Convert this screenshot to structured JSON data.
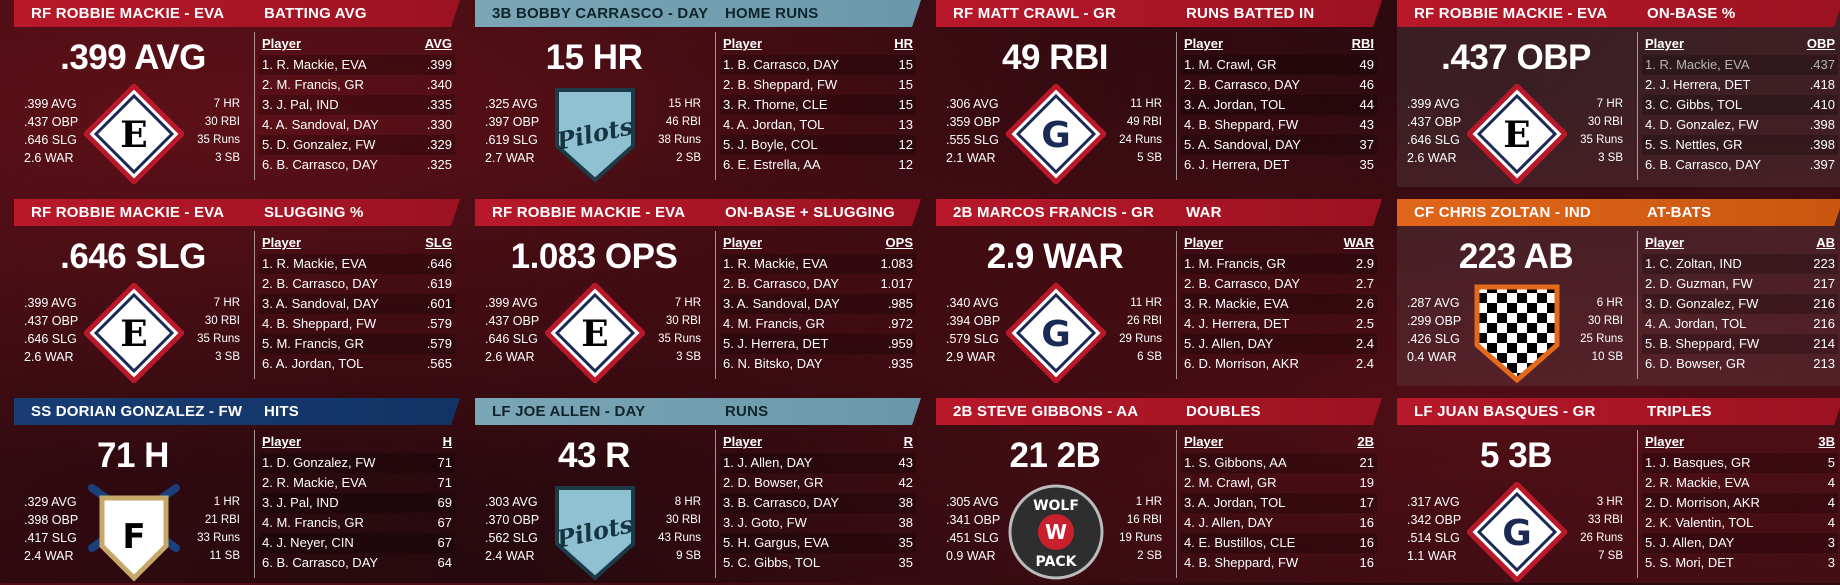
{
  "cards": [
    {
      "player": "RF ROBBIE MACKIE - EVA",
      "category": "BATTING AVG",
      "headline": ".399 AVG",
      "stats": [
        ".399 AVG",
        ".437 OBP",
        ".646 SLG",
        "2.6 WAR"
      ],
      "rstats": [
        "7 HR",
        "30 RBI",
        "35 Runs",
        "3 SB"
      ],
      "logo_letter": "E",
      "col_player": "Player",
      "col_stat": "AVG",
      "rows": [
        {
          "name": "1. R. Mackie, EVA",
          "val": ".399"
        },
        {
          "name": "2. M. Francis, GR",
          "val": ".340"
        },
        {
          "name": "3. J. Pal, IND",
          "val": ".335"
        },
        {
          "name": "4. A. Sandoval, DAY",
          "val": ".330"
        },
        {
          "name": "5. D. Gonzalez, FW",
          "val": ".329"
        },
        {
          "name": "6. B. Carrasco, DAY",
          "val": ".325"
        }
      ]
    },
    {
      "player": "3B BOBBY CARRASCO - DAY",
      "category": "HOME RUNS",
      "headline": "15 HR",
      "stats": [
        ".325 AVG",
        ".397 OBP",
        ".619 SLG",
        "2.7 WAR"
      ],
      "rstats": [
        "15 HR",
        "46 RBI",
        "38 Runs",
        "2 SB"
      ],
      "logo_text": "Pilots",
      "col_player": "Player",
      "col_stat": "HR",
      "rows": [
        {
          "name": "1. B. Carrasco, DAY",
          "val": "15"
        },
        {
          "name": "2. B. Sheppard, FW",
          "val": "15"
        },
        {
          "name": "3. R. Thorne, CLE",
          "val": "15"
        },
        {
          "name": "4. A. Jordan, TOL",
          "val": "13"
        },
        {
          "name": "5. J. Boyle, COL",
          "val": "12"
        },
        {
          "name": "6. E. Estrella, AA",
          "val": "12"
        }
      ]
    },
    {
      "player": "RF MATT CRAWL - GR",
      "category": "RUNS BATTED IN",
      "headline": "49 RBI",
      "stats": [
        ".306 AVG",
        ".359 OBP",
        ".555 SLG",
        "2.1 WAR"
      ],
      "rstats": [
        "11 HR",
        "49 RBI",
        "24 Runs",
        "5 SB"
      ],
      "logo_letter": "G",
      "col_player": "Player",
      "col_stat": "RBI",
      "rows": [
        {
          "name": "1. M. Crawl, GR",
          "val": "49"
        },
        {
          "name": "2. B. Carrasco, DAY",
          "val": "46"
        },
        {
          "name": "3. A. Jordan, TOL",
          "val": "44"
        },
        {
          "name": "4. B. Sheppard, FW",
          "val": "43"
        },
        {
          "name": "5. A. Sandoval, DAY",
          "val": "37"
        },
        {
          "name": "6. J. Herrera, DET",
          "val": "35"
        }
      ]
    },
    {
      "player": "RF ROBBIE MACKIE - EVA",
      "category": "ON-BASE %",
      "headline": ".437 OBP",
      "stats": [
        ".399 AVG",
        ".437 OBP",
        ".646 SLG",
        "2.6 WAR"
      ],
      "rstats": [
        "7 HR",
        "30 RBI",
        "35 Runs",
        "3 SB"
      ],
      "logo_letter": "E",
      "col_player": "Player",
      "col_stat": "OBP",
      "rows": [
        {
          "name": "1. R. Mackie, EVA",
          "val": ".437"
        },
        {
          "name": "2. J. Herrera, DET",
          "val": ".418"
        },
        {
          "name": "3. C. Gibbs, TOL",
          "val": ".410"
        },
        {
          "name": "4. D. Gonzalez, FW",
          "val": ".398"
        },
        {
          "name": "5. S. Nettles, GR",
          "val": ".398"
        },
        {
          "name": "6. B. Carrasco, DAY",
          "val": ".397"
        }
      ]
    },
    {
      "player": "RF ROBBIE MACKIE - EVA",
      "category": "SLUGGING %",
      "headline": ".646 SLG",
      "stats": [
        ".399 AVG",
        ".437 OBP",
        ".646 SLG",
        "2.6 WAR"
      ],
      "rstats": [
        "7 HR",
        "30 RBI",
        "35 Runs",
        "3 SB"
      ],
      "logo_letter": "E",
      "col_player": "Player",
      "col_stat": "SLG",
      "rows": [
        {
          "name": "1. R. Mackie, EVA",
          "val": ".646"
        },
        {
          "name": "2. B. Carrasco, DAY",
          "val": ".619"
        },
        {
          "name": "3. A. Sandoval, DAY",
          "val": ".601"
        },
        {
          "name": "4. B. Sheppard, FW",
          "val": ".579"
        },
        {
          "name": "5. M. Francis, GR",
          "val": ".579"
        },
        {
          "name": "6. A. Jordan, TOL",
          "val": ".565"
        }
      ]
    },
    {
      "player": "RF ROBBIE MACKIE - EVA",
      "category": "ON-BASE + SLUGGING",
      "headline": "1.083 OPS",
      "stats": [
        ".399 AVG",
        ".437 OBP",
        ".646 SLG",
        "2.6 WAR"
      ],
      "rstats": [
        "7 HR",
        "30 RBI",
        "35 Runs",
        "3 SB"
      ],
      "logo_letter": "E",
      "col_player": "Player",
      "col_stat": "OPS",
      "rows": [
        {
          "name": "1. R. Mackie, EVA",
          "val": "1.083"
        },
        {
          "name": "2. B. Carrasco, DAY",
          "val": "1.017"
        },
        {
          "name": "3. A. Sandoval, DAY",
          "val": ".985"
        },
        {
          "name": "4. M. Francis, GR",
          "val": ".972"
        },
        {
          "name": "5. J. Herrera, DET",
          "val": ".959"
        },
        {
          "name": "6. N. Bitsko, DAY",
          "val": ".935"
        }
      ]
    },
    {
      "player": "2B MARCOS FRANCIS - GR",
      "category": "WAR",
      "headline": "2.9 WAR",
      "stats": [
        ".340 AVG",
        ".394 OBP",
        ".579 SLG",
        "2.9 WAR"
      ],
      "rstats": [
        "11 HR",
        "26 RBI",
        "29 Runs",
        "6 SB"
      ],
      "logo_letter": "G",
      "col_player": "Player",
      "col_stat": "WAR",
      "rows": [
        {
          "name": "1. M. Francis, GR",
          "val": "2.9"
        },
        {
          "name": "2. B. Carrasco, DAY",
          "val": "2.7"
        },
        {
          "name": "3. R. Mackie, EVA",
          "val": "2.6"
        },
        {
          "name": "4. J. Herrera, DET",
          "val": "2.5"
        },
        {
          "name": "5. J. Allen, DAY",
          "val": "2.4"
        },
        {
          "name": "6. D. Morrison, AKR",
          "val": "2.4"
        }
      ]
    },
    {
      "player": "CF CHRIS ZOLTAN - IND",
      "category": "AT-BATS",
      "headline": "223 AB",
      "stats": [
        ".287 AVG",
        ".299 OBP",
        ".426 SLG",
        "0.4 WAR"
      ],
      "rstats": [
        "6 HR",
        "30 RBI",
        "25 Runs",
        "10 SB"
      ],
      "logo_checker": true,
      "col_player": "Player",
      "col_stat": "AB",
      "rows": [
        {
          "name": "1. C. Zoltan, IND",
          "val": "223"
        },
        {
          "name": "2. D. Guzman, FW",
          "val": "217"
        },
        {
          "name": "3. D. Gonzalez, FW",
          "val": "216"
        },
        {
          "name": "4. A. Jordan, TOL",
          "val": "216"
        },
        {
          "name": "5. B. Sheppard, FW",
          "val": "214"
        },
        {
          "name": "6. D. Bowser, GR",
          "val": "213"
        }
      ]
    },
    {
      "player": "SS DORIAN GONZALEZ - FW",
      "category": "HITS",
      "headline": "71 H",
      "stats": [
        ".329 AVG",
        ".398 OBP",
        ".417 SLG",
        "2.4 WAR"
      ],
      "rstats": [
        "1 HR",
        "21 RBI",
        "33 Runs",
        "11 SB"
      ],
      "logo_letter": "F",
      "col_player": "Player",
      "col_stat": "H",
      "rows": [
        {
          "name": "1. D. Gonzalez, FW",
          "val": "71"
        },
        {
          "name": "2. R. Mackie, EVA",
          "val": "71"
        },
        {
          "name": "3. J. Pal, IND",
          "val": "69"
        },
        {
          "name": "4. M. Francis, GR",
          "val": "67"
        },
        {
          "name": "4. J. Neyer, CIN",
          "val": "67"
        },
        {
          "name": "6. B. Carrasco, DAY",
          "val": "64"
        }
      ]
    },
    {
      "player": "LF JOE ALLEN - DAY",
      "category": "RUNS",
      "headline": "43 R",
      "stats": [
        ".303 AVG",
        ".370 OBP",
        ".562 SLG",
        "2.4 WAR"
      ],
      "rstats": [
        "8 HR",
        "30 RBI",
        "43 Runs",
        "9 SB"
      ],
      "logo_text": "Pilots",
      "col_player": "Player",
      "col_stat": "R",
      "rows": [
        {
          "name": "1. J. Allen, DAY",
          "val": "43"
        },
        {
          "name": "2. D. Bowser, GR",
          "val": "42"
        },
        {
          "name": "3. B. Carrasco, DAY",
          "val": "38"
        },
        {
          "name": "3. J. Goto, FW",
          "val": "38"
        },
        {
          "name": "5. H. Gargus, EVA",
          "val": "35"
        },
        {
          "name": "5. C. Gibbs, TOL",
          "val": "35"
        }
      ]
    },
    {
      "player": "2B STEVE GIBBONS - AA",
      "category": "DOUBLES",
      "headline": "21 2B",
      "stats": [
        ".305 AVG",
        ".341 OBP",
        ".451 SLG",
        "0.9 WAR"
      ],
      "rstats": [
        "1 HR",
        "16 RBI",
        "19 Runs",
        "2 SB"
      ],
      "logo_wolf": [
        "WOLF",
        "W",
        "PACK"
      ],
      "col_player": "Player",
      "col_stat": "2B",
      "rows": [
        {
          "name": "1. S. Gibbons, AA",
          "val": "21"
        },
        {
          "name": "2. M. Crawl, GR",
          "val": "19"
        },
        {
          "name": "3. A. Jordan, TOL",
          "val": "17"
        },
        {
          "name": "4. J. Allen, DAY",
          "val": "16"
        },
        {
          "name": "4. E. Bustillos, CLE",
          "val": "16"
        },
        {
          "name": "4. B. Sheppard, FW",
          "val": "16"
        }
      ]
    },
    {
      "player": "LF JUAN BASQUES - GR",
      "category": "TRIPLES",
      "headline": "5 3B",
      "stats": [
        ".317 AVG",
        ".342 OBP",
        ".514 SLG",
        "1.1 WAR"
      ],
      "rstats": [
        "3 HR",
        "33 RBI",
        "26 Runs",
        "7 SB"
      ],
      "logo_letter": "G",
      "col_player": "Player",
      "col_stat": "3B",
      "rows": [
        {
          "name": "1. J. Basques, GR",
          "val": "5"
        },
        {
          "name": "2. R. Mackie, EVA",
          "val": "4"
        },
        {
          "name": "2. D. Morrison, AKR",
          "val": "4"
        },
        {
          "name": "2. K. Valentin, TOL",
          "val": "4"
        },
        {
          "name": "5. J. Allen, DAY",
          "val": "3"
        },
        {
          "name": "5. S. Mori, DET",
          "val": "3"
        }
      ]
    }
  ]
}
